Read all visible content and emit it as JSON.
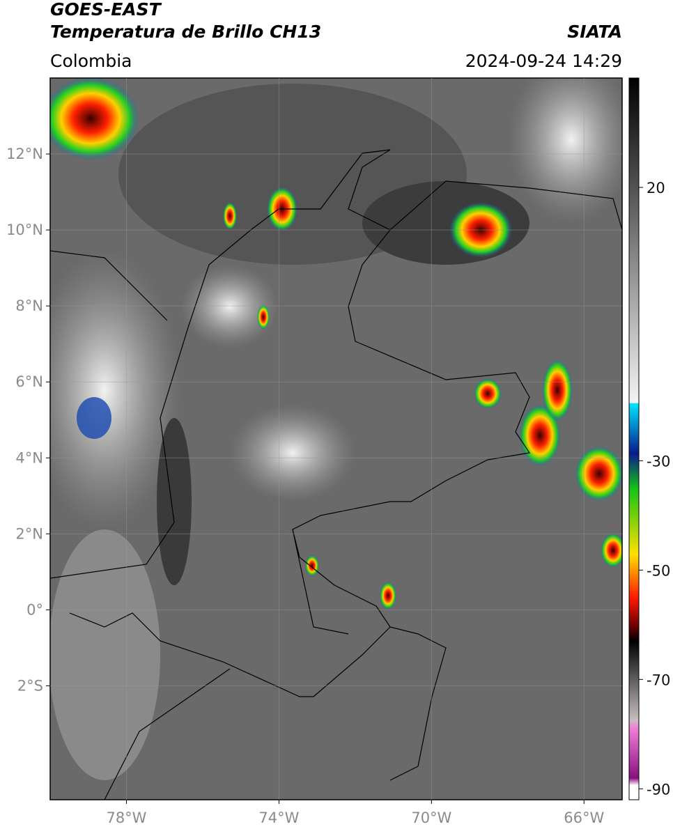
{
  "header": {
    "satellite": "GOES-EAST",
    "product": "Temperatura de Brillo CH13",
    "source": "SIATA",
    "region": "Colombia",
    "datetime": "2024-09-24 14:29"
  },
  "map": {
    "xlim": [
      -80,
      -65
    ],
    "ylim": [
      -5,
      14
    ],
    "xticks": [
      {
        "value": -78,
        "label": "78°W"
      },
      {
        "value": -74,
        "label": "74°W"
      },
      {
        "value": -70,
        "label": "70°W"
      },
      {
        "value": -66,
        "label": "66°W"
      }
    ],
    "yticks": [
      {
        "value": 12,
        "label": "12°N"
      },
      {
        "value": 10,
        "label": "10°N"
      },
      {
        "value": 8,
        "label": "8°N"
      },
      {
        "value": 6,
        "label": "6°N"
      },
      {
        "value": 4,
        "label": "4°N"
      },
      {
        "value": 2,
        "label": "2°N"
      },
      {
        "value": 0,
        "label": "0°"
      },
      {
        "value": -2,
        "label": "2°S"
      }
    ]
  },
  "colorbar": {
    "lim": [
      -92,
      40
    ],
    "ticks": [
      20,
      -30,
      -50,
      -70,
      -90
    ]
  }
}
